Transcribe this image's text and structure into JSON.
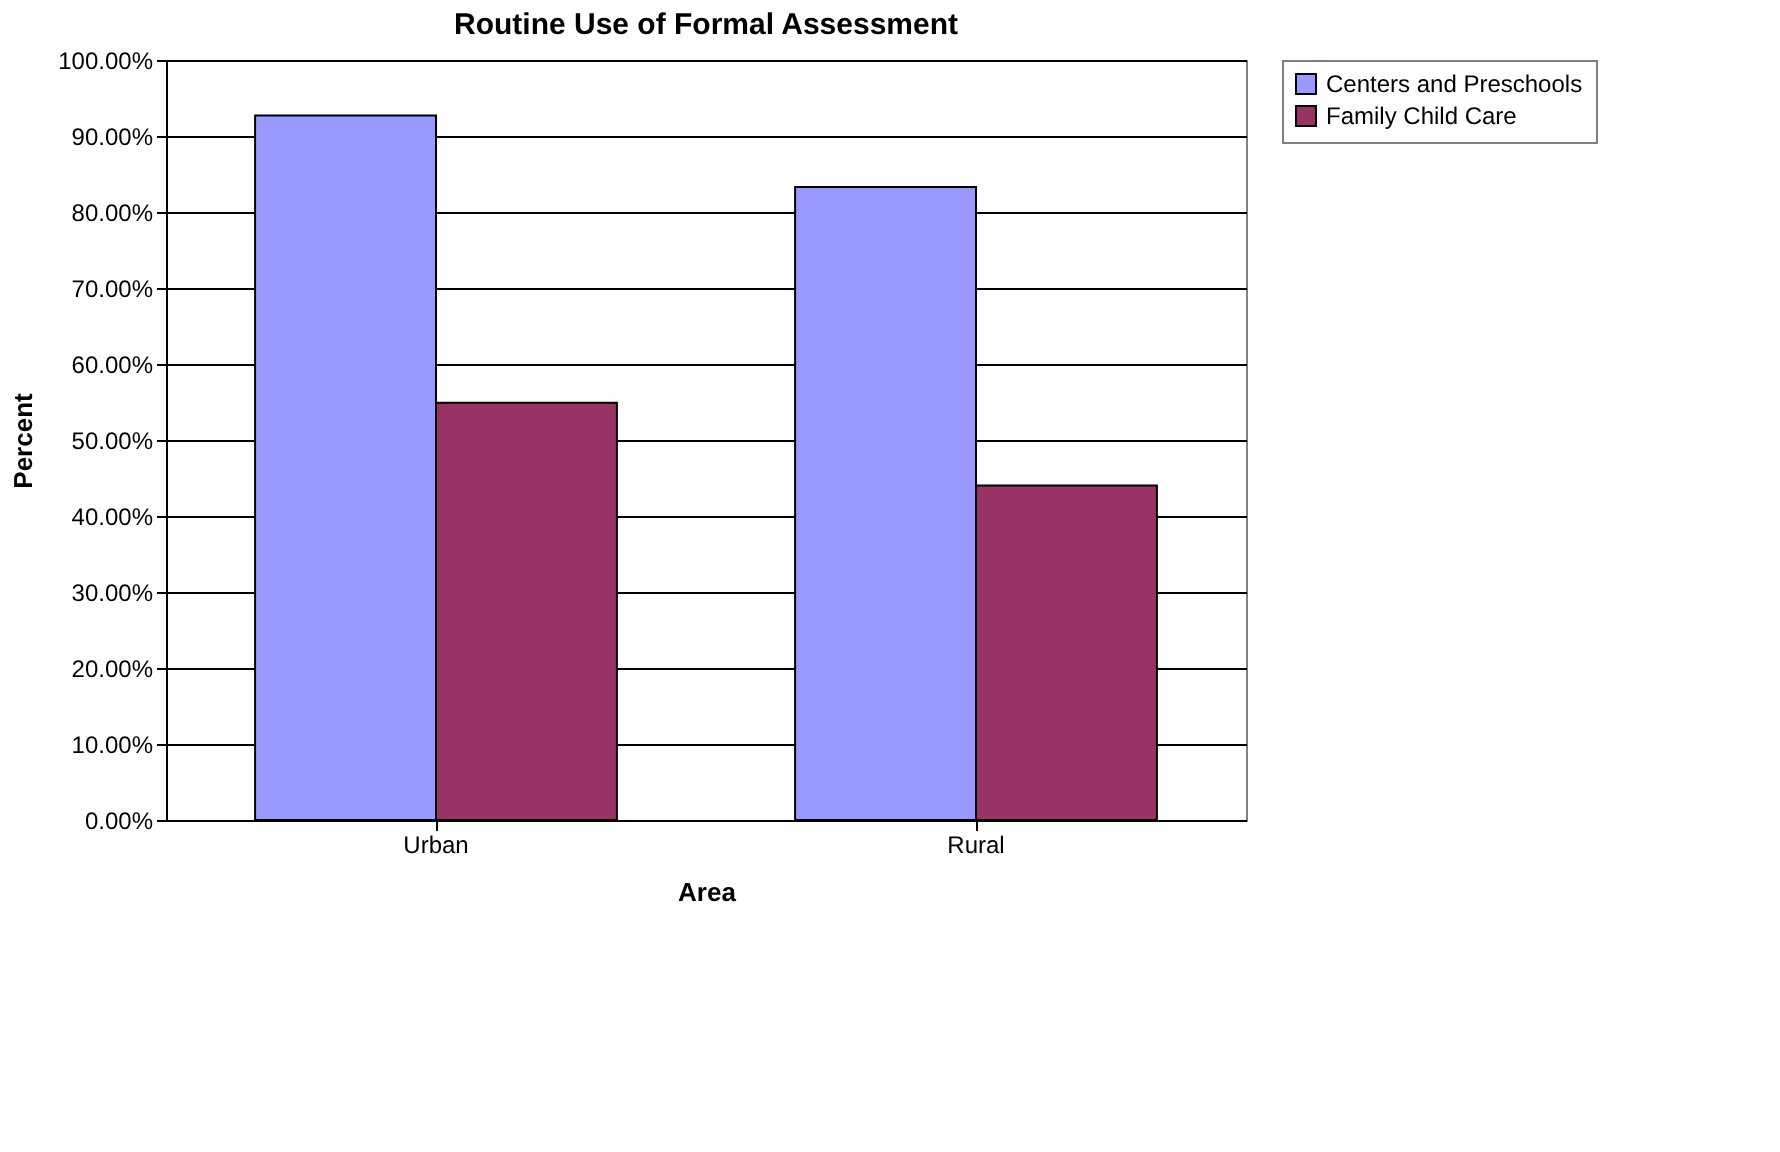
{
  "chart_data": {
    "type": "bar",
    "title": "Routine Use of Formal Assessment",
    "xlabel": "Area",
    "ylabel": "Percent",
    "categories": [
      "Urban",
      "Rural"
    ],
    "series": [
      {
        "name": "Centers and Preschools",
        "color": "#9999ff",
        "values": [
          92.7,
          83.3
        ]
      },
      {
        "name": "Family Child Care",
        "color": "#993366",
        "values": [
          54.9,
          44.0
        ]
      }
    ],
    "ylim": [
      0,
      100
    ],
    "yticks": [
      {
        "value": 0,
        "label": "0.00%"
      },
      {
        "value": 10,
        "label": "10.00%"
      },
      {
        "value": 20,
        "label": "20.00%"
      },
      {
        "value": 30,
        "label": "30.00%"
      },
      {
        "value": 40,
        "label": "40.00%"
      },
      {
        "value": 50,
        "label": "50.00%"
      },
      {
        "value": 60,
        "label": "60.00%"
      },
      {
        "value": 70,
        "label": "70.00%"
      },
      {
        "value": 80,
        "label": "80.00%"
      },
      {
        "value": 90,
        "label": "90.00%"
      },
      {
        "value": 100,
        "label": "100.00%"
      }
    ],
    "grid": "y",
    "legend": "right"
  }
}
